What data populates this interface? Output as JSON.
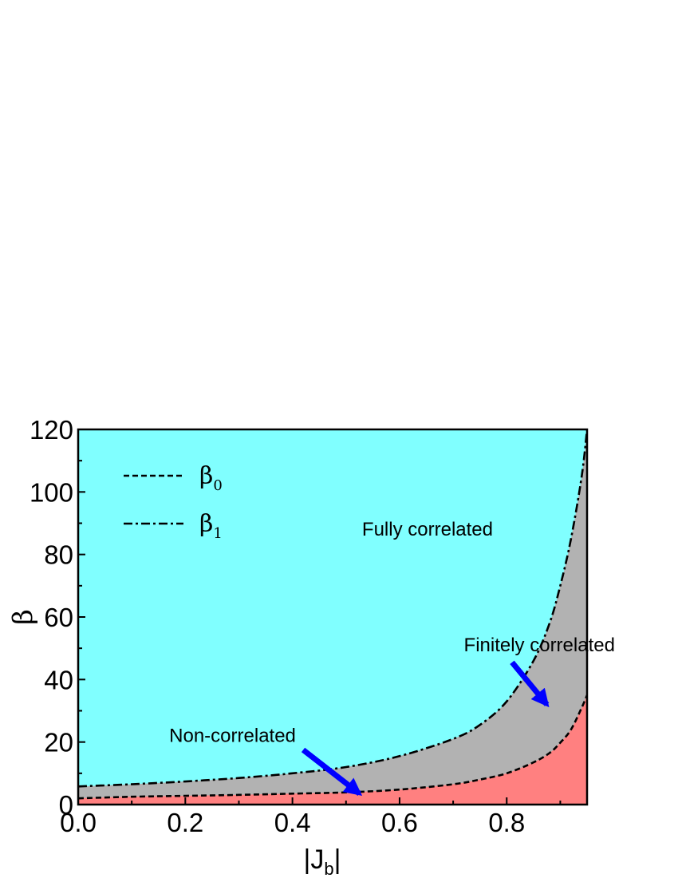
{
  "chart_data": {
    "type": "area",
    "xlabel": "|J",
    "xlabel_sub": "b",
    "xlabel_close": "|",
    "ylabel": "β",
    "xlim": [
      0.0,
      0.95
    ],
    "ylim": [
      0,
      120
    ],
    "x_ticks": [
      0.0,
      0.2,
      0.4,
      0.6,
      0.8
    ],
    "x_tick_labels": [
      "0.0",
      "0.2",
      "0.4",
      "0.6",
      "0.8"
    ],
    "y_ticks": [
      0,
      20,
      40,
      60,
      80,
      100,
      120
    ],
    "y_tick_labels": [
      "0",
      "20",
      "40",
      "60",
      "80",
      "100",
      "120"
    ],
    "grid": false,
    "legend_position": "top-left",
    "x": [
      0.0,
      0.1,
      0.2,
      0.3,
      0.4,
      0.5,
      0.6,
      0.7,
      0.75,
      0.8,
      0.85,
      0.88,
      0.9,
      0.92,
      0.94,
      0.95
    ],
    "series": [
      {
        "name": "β",
        "sub": "0",
        "style": "dashed",
        "values": [
          2.0,
          2.5,
          2.8,
          3.1,
          3.5,
          3.9,
          4.8,
          6.5,
          8.0,
          10.0,
          13.5,
          16.5,
          19.8,
          24.0,
          31.0,
          35.0
        ]
      },
      {
        "name": "β",
        "sub": "1",
        "style": "dashdot",
        "values": [
          5.8,
          6.5,
          7.4,
          8.5,
          10.0,
          12.0,
          15.5,
          21.0,
          25.5,
          33.0,
          46.0,
          58.0,
          70.0,
          85.0,
          105.0,
          120.0
        ]
      }
    ],
    "regions": [
      {
        "label": "Fully correlated",
        "color": "#80ffff"
      },
      {
        "label": "Finitely correlated",
        "color": "#b2b2b2"
      },
      {
        "label": "Non-correlated",
        "color": "#ff8080"
      }
    ],
    "annotations": [
      {
        "text": "Fully correlated",
        "at": [
          0.53,
          86
        ]
      },
      {
        "text": "Finitely correlated",
        "at": [
          0.72,
          49
        ],
        "arrow_from": [
          0.81,
          45.5
        ],
        "arrow_to": [
          0.875,
          32
        ]
      },
      {
        "text": "Non-correlated",
        "at": [
          0.17,
          20
        ],
        "arrow_from": [
          0.42,
          17.5
        ],
        "arrow_to": [
          0.525,
          3.5
        ]
      }
    ],
    "arrow_color": "#0000ff"
  }
}
